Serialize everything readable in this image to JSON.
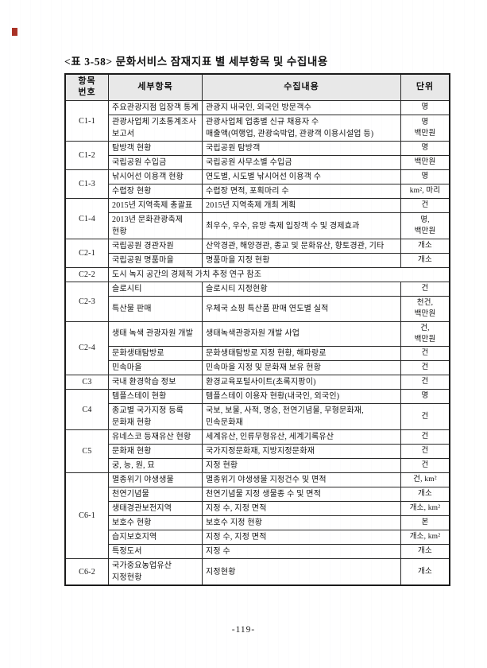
{
  "page": {
    "title": "<표 3-58> 문화서비스 잠재지표 별 세부항목 및 수집내용",
    "page_number": "-119-",
    "corner_mark": {
      "color": "#a93226"
    }
  },
  "table": {
    "header_bg": "#e8e8e8",
    "headers": {
      "id": "항목\n번호",
      "item": "세부항목",
      "content": "수집내용",
      "unit": "단위"
    },
    "groups": [
      {
        "id": "C1-1",
        "rows": [
          {
            "item": "주요관광지점 입장객 통계",
            "content": "관광지 내국인, 외국인 방문객수",
            "unit": "명"
          },
          {
            "item": "관광사업체 기초통계조사 보고서",
            "content": "관광사업체 업종별 신규 채용자 수\n매출액(여행업, 관광숙박업, 관광객 이용시설업 등)",
            "unit": "명\n백만원"
          }
        ]
      },
      {
        "id": "C1-2",
        "rows": [
          {
            "item": "탐방객 현황",
            "content": "국립공원 탐방객",
            "unit": "명"
          },
          {
            "item": "국립공원 수입금",
            "content": "국립공원 사무소별 수입금",
            "unit": "백만원"
          }
        ]
      },
      {
        "id": "C1-3",
        "rows": [
          {
            "item": "낚시어선 이용객 현황",
            "content": "연도별, 시도별 낚시어선 이용객 수",
            "unit": "명"
          },
          {
            "item": "수렵장 현황",
            "content": "수렵장 면적, 포획마리 수",
            "unit": "km², 마리"
          }
        ]
      },
      {
        "id": "C1-4",
        "rows": [
          {
            "item": "2015년 지역축제 총괄표",
            "content": "2015년 지역축제 개최 계획",
            "unit": "건"
          },
          {
            "item": "2013년 문화관광축제 현황",
            "content": "최우수, 우수, 유망 축제 입장객 수 및 경제효과",
            "unit": "명,\n백만원"
          }
        ]
      },
      {
        "id": "C2-1",
        "rows": [
          {
            "item": "국립공원 경관자원",
            "content": "산악경관, 해양경관, 종교 및 문화유산, 향토경관, 기타",
            "unit": "개소"
          },
          {
            "item": "국립공원 명품마을",
            "content": "명품마을 지정 현황",
            "unit": "개소"
          }
        ]
      },
      {
        "id": "C2-2",
        "rows": [
          {
            "span": true,
            "content": "도시 녹지 공간의 경제적 가치 추정 연구 참조"
          }
        ]
      },
      {
        "id": "C2-3",
        "rows": [
          {
            "item": "슬로시티",
            "content": "슬로시티 지정현황",
            "unit": "건"
          },
          {
            "item": "특산물 판매",
            "content": "우체국 쇼핑 특산품 판매 연도별 실적",
            "unit": "천건,\n백만원"
          }
        ]
      },
      {
        "id": "C2-4",
        "rows": [
          {
            "item": "생태 녹색 관광자원 개발",
            "content": "생태녹색관광자원 개발 사업",
            "unit": "건,\n백만원"
          },
          {
            "item": "문화생태탐방로",
            "content": "문화생태탐방로 지정 현황, 해파랑로",
            "unit": "건"
          },
          {
            "item": "민속마을",
            "content": "민속마을 지정 및 문화재 보유 현황",
            "unit": "건"
          }
        ]
      },
      {
        "id": "C3",
        "rows": [
          {
            "item": "국내 환경학습 정보",
            "content": "환경교육포털사이트(초록지팡이)",
            "unit": "건"
          }
        ]
      },
      {
        "id": "C4",
        "rows": [
          {
            "item": "템플스테이 현황",
            "content": "템플스테이 이용자 현황(내국인, 외국인)",
            "unit": "명"
          },
          {
            "item": "종교별 국가지정 등록 문화재 현황",
            "content": "국보, 보물, 사적, 명승, 천연기념물, 무형문화재, 민속문화재",
            "unit": "건"
          }
        ]
      },
      {
        "id": "C5",
        "rows": [
          {
            "item": "유네스코 등재유산 현황",
            "content": "세계유산, 인류무형유산, 세계기록유산",
            "unit": "건"
          },
          {
            "item": "문화재 현황",
            "content": "국가지정문화재, 지방지정문화재",
            "unit": "건"
          },
          {
            "item": "궁, 능, 원, 묘",
            "content": "지정 현황",
            "unit": "건"
          }
        ]
      },
      {
        "id": "C6-1",
        "rows": [
          {
            "item": "멸종위기 야생생물",
            "content": "멸종위기 야생생물 지정건수 및 면적",
            "unit": "건, km²"
          },
          {
            "item": "천연기념물",
            "content": "천연기념물 지정 생물종 수 및 면적",
            "unit": "개소"
          },
          {
            "item": "생태경관보전지역",
            "content": "지정 수, 지정 면적",
            "unit": "개소, km²"
          },
          {
            "item": "보호수 현황",
            "content": "보호수 지정 현황",
            "unit": "본"
          },
          {
            "item": "습지보호지역",
            "content": "지정 수, 지정 면적",
            "unit": "개소, km²"
          },
          {
            "item": "특정도서",
            "content": "지정 수",
            "unit": "개소"
          }
        ]
      },
      {
        "id": "C6-2",
        "rows": [
          {
            "item": "국가중요농업유산 지정현황",
            "content": "지정현황",
            "unit": "개소"
          }
        ]
      }
    ]
  }
}
